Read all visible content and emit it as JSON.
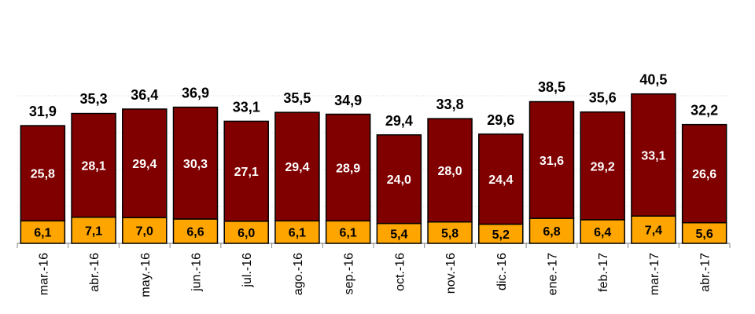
{
  "chart_data": {
    "type": "bar",
    "stacked": true,
    "title": "",
    "xlabel": "",
    "ylabel": "",
    "categories": [
      "mar.-16",
      "abr.-16",
      "may.-16",
      "jun.-16",
      "jul.-16",
      "ago.-16",
      "sep.-16",
      "oct.-16",
      "nov.-16",
      "dic.-16",
      "ene.-17",
      "feb.-17",
      "mar.-17",
      "abr.-17"
    ],
    "series": [
      {
        "color": "#FFA500",
        "values": [
          6.1,
          7.1,
          7.0,
          6.6,
          6.0,
          6.1,
          6.1,
          5.4,
          5.8,
          5.2,
          6.8,
          6.4,
          7.4,
          5.6
        ],
        "labels": [
          "6,1",
          "7,1",
          "7,0",
          "6,6",
          "6,0",
          "6,1",
          "6,1",
          "5,4",
          "5,8",
          "5,2",
          "6,8",
          "6,4",
          "7,4",
          "5,6"
        ]
      },
      {
        "color": "#800000",
        "values": [
          25.8,
          28.1,
          29.4,
          30.3,
          27.1,
          29.4,
          28.9,
          24.0,
          28.0,
          24.4,
          31.6,
          29.2,
          33.1,
          26.6
        ],
        "labels": [
          "25,8",
          "28,1",
          "29,4",
          "30,3",
          "27,1",
          "29,4",
          "28,9",
          "24,0",
          "28,0",
          "24,4",
          "31,6",
          "29,2",
          "33,1",
          "26,6"
        ]
      }
    ],
    "totals": [
      31.9,
      35.3,
      36.4,
      36.9,
      33.1,
      35.5,
      34.9,
      29.4,
      33.8,
      29.6,
      38.5,
      35.6,
      40.5,
      32.2
    ],
    "total_labels": [
      "31,9",
      "35,3",
      "36,4",
      "36,9",
      "33,1",
      "35,5",
      "34,9",
      "29,4",
      "33,8",
      "29,6",
      "38,5",
      "35,6",
      "40,5",
      "32,2"
    ],
    "ylim": [
      0,
      50
    ],
    "grid": true,
    "legend": "none"
  }
}
